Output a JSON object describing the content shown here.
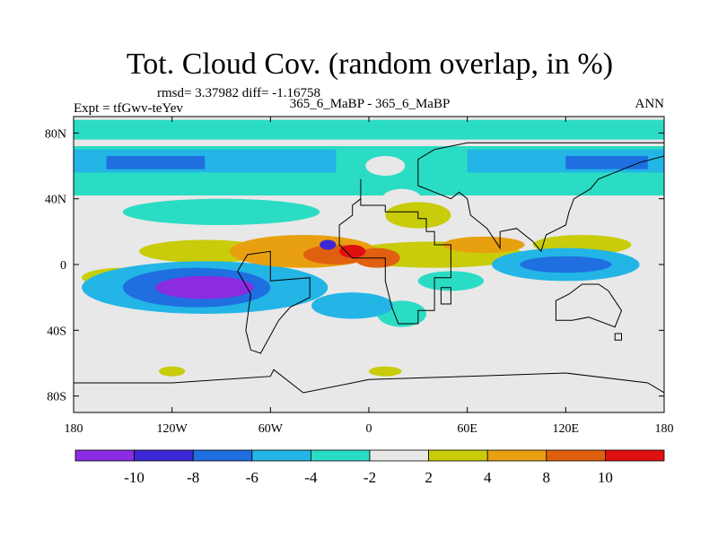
{
  "chart_data": {
    "type": "heatmap",
    "title": "Tot. Cloud Cov. (random overlap, in %)",
    "stats": "rmsd= 3.37982 diff= -1.16758",
    "left_label": "Expt = tfGwv-teYev",
    "center_label": "365_6_MaBP - 365_6_MaBP",
    "right_label": "ANN",
    "x_range": [
      -180,
      180
    ],
    "y_range": [
      -90,
      90
    ],
    "x_ticks": [
      {
        "value": -180,
        "label": "180"
      },
      {
        "value": -120,
        "label": "120W"
      },
      {
        "value": -60,
        "label": "60W"
      },
      {
        "value": 0,
        "label": "0"
      },
      {
        "value": 60,
        "label": "60E"
      },
      {
        "value": 120,
        "label": "120E"
      },
      {
        "value": 180,
        "label": "180"
      }
    ],
    "y_ticks": [
      {
        "value": 80,
        "label": "80N"
      },
      {
        "value": 40,
        "label": "40N"
      },
      {
        "value": 0,
        "label": "0"
      },
      {
        "value": -40,
        "label": "40S"
      },
      {
        "value": -80,
        "label": "80S"
      }
    ],
    "colorbar": {
      "colors": [
        "#8b2be2",
        "#3c28d6",
        "#1f6fe0",
        "#22b5e6",
        "#2bdcc4",
        "#e8e8e8",
        "#c8cc0a",
        "#e8a010",
        "#e06010",
        "#e01010"
      ],
      "labels": [
        "-10",
        "-8",
        "-6",
        "-4",
        "-2",
        "2",
        "4",
        "8",
        "10"
      ]
    },
    "field": {
      "description_levels": "values are percent difference",
      "bands": [
        {
          "lon": [
            -180,
            180
          ],
          "lat": [
            76,
            88
          ],
          "value": -3
        },
        {
          "lon": [
            -180,
            180
          ],
          "lat": [
            42,
            72
          ],
          "value": -3
        },
        {
          "lon": [
            -180,
            -20
          ],
          "lat": [
            56,
            70
          ],
          "value": -5
        },
        {
          "lon": [
            60,
            180
          ],
          "lat": [
            56,
            70
          ],
          "value": -5
        },
        {
          "lon": [
            -160,
            -100
          ],
          "lat": [
            58,
            66
          ],
          "value": -7
        },
        {
          "lon": [
            120,
            170
          ],
          "lat": [
            58,
            66
          ],
          "value": -7
        }
      ],
      "blobs": [
        {
          "lon": -100,
          "lat": -14,
          "rx": 30,
          "ry": 7,
          "value": -11
        },
        {
          "lon": -105,
          "lat": -14,
          "rx": 45,
          "ry": 12,
          "value": -7
        },
        {
          "lon": -100,
          "lat": -14,
          "rx": 75,
          "ry": 16,
          "value": -5
        },
        {
          "lon": 120,
          "lat": 0,
          "rx": 28,
          "ry": 5,
          "value": -7
        },
        {
          "lon": 120,
          "lat": 0,
          "rx": 45,
          "ry": 10,
          "value": -5
        },
        {
          "lon": -90,
          "lat": 32,
          "rx": 60,
          "ry": 8,
          "value": -3
        },
        {
          "lon": -40,
          "lat": 8,
          "rx": 45,
          "ry": 10,
          "value": 5
        },
        {
          "lon": -20,
          "lat": 6,
          "rx": 20,
          "ry": 6,
          "value": 9
        },
        {
          "lon": -10,
          "lat": 8,
          "rx": 8,
          "ry": 4,
          "value": 11
        },
        {
          "lon": 5,
          "lat": 4,
          "rx": 14,
          "ry": 6,
          "value": 9
        },
        {
          "lon": -100,
          "lat": 8,
          "rx": 40,
          "ry": 7,
          "value": 3
        },
        {
          "lon": 40,
          "lat": 6,
          "rx": 55,
          "ry": 8,
          "value": 3
        },
        {
          "lon": 70,
          "lat": 12,
          "rx": 25,
          "ry": 5,
          "value": 5
        },
        {
          "lon": 130,
          "lat": 12,
          "rx": 30,
          "ry": 6,
          "value": 3
        },
        {
          "lon": -150,
          "lat": -8,
          "rx": 25,
          "ry": 6,
          "value": 3
        },
        {
          "lon": -10,
          "lat": -25,
          "rx": 25,
          "ry": 8,
          "value": -5
        },
        {
          "lon": 20,
          "lat": -30,
          "rx": 15,
          "ry": 8,
          "value": -3
        },
        {
          "lon": 50,
          "lat": -10,
          "rx": 20,
          "ry": 6,
          "value": -3
        },
        {
          "lon": 30,
          "lat": 30,
          "rx": 20,
          "ry": 8,
          "value": 3
        },
        {
          "lon": 10,
          "lat": -65,
          "rx": 10,
          "ry": 3,
          "value": 3
        },
        {
          "lon": -120,
          "lat": -65,
          "rx": 8,
          "ry": 3,
          "value": 3
        },
        {
          "lon": -25,
          "lat": 12,
          "rx": 5,
          "ry": 3,
          "value": -9
        },
        {
          "lon": 10,
          "lat": 60,
          "rx": 12,
          "ry": 6,
          "value": 0
        },
        {
          "lon": 20,
          "lat": 40,
          "rx": 12,
          "ry": 6,
          "value": 0
        }
      ]
    }
  }
}
